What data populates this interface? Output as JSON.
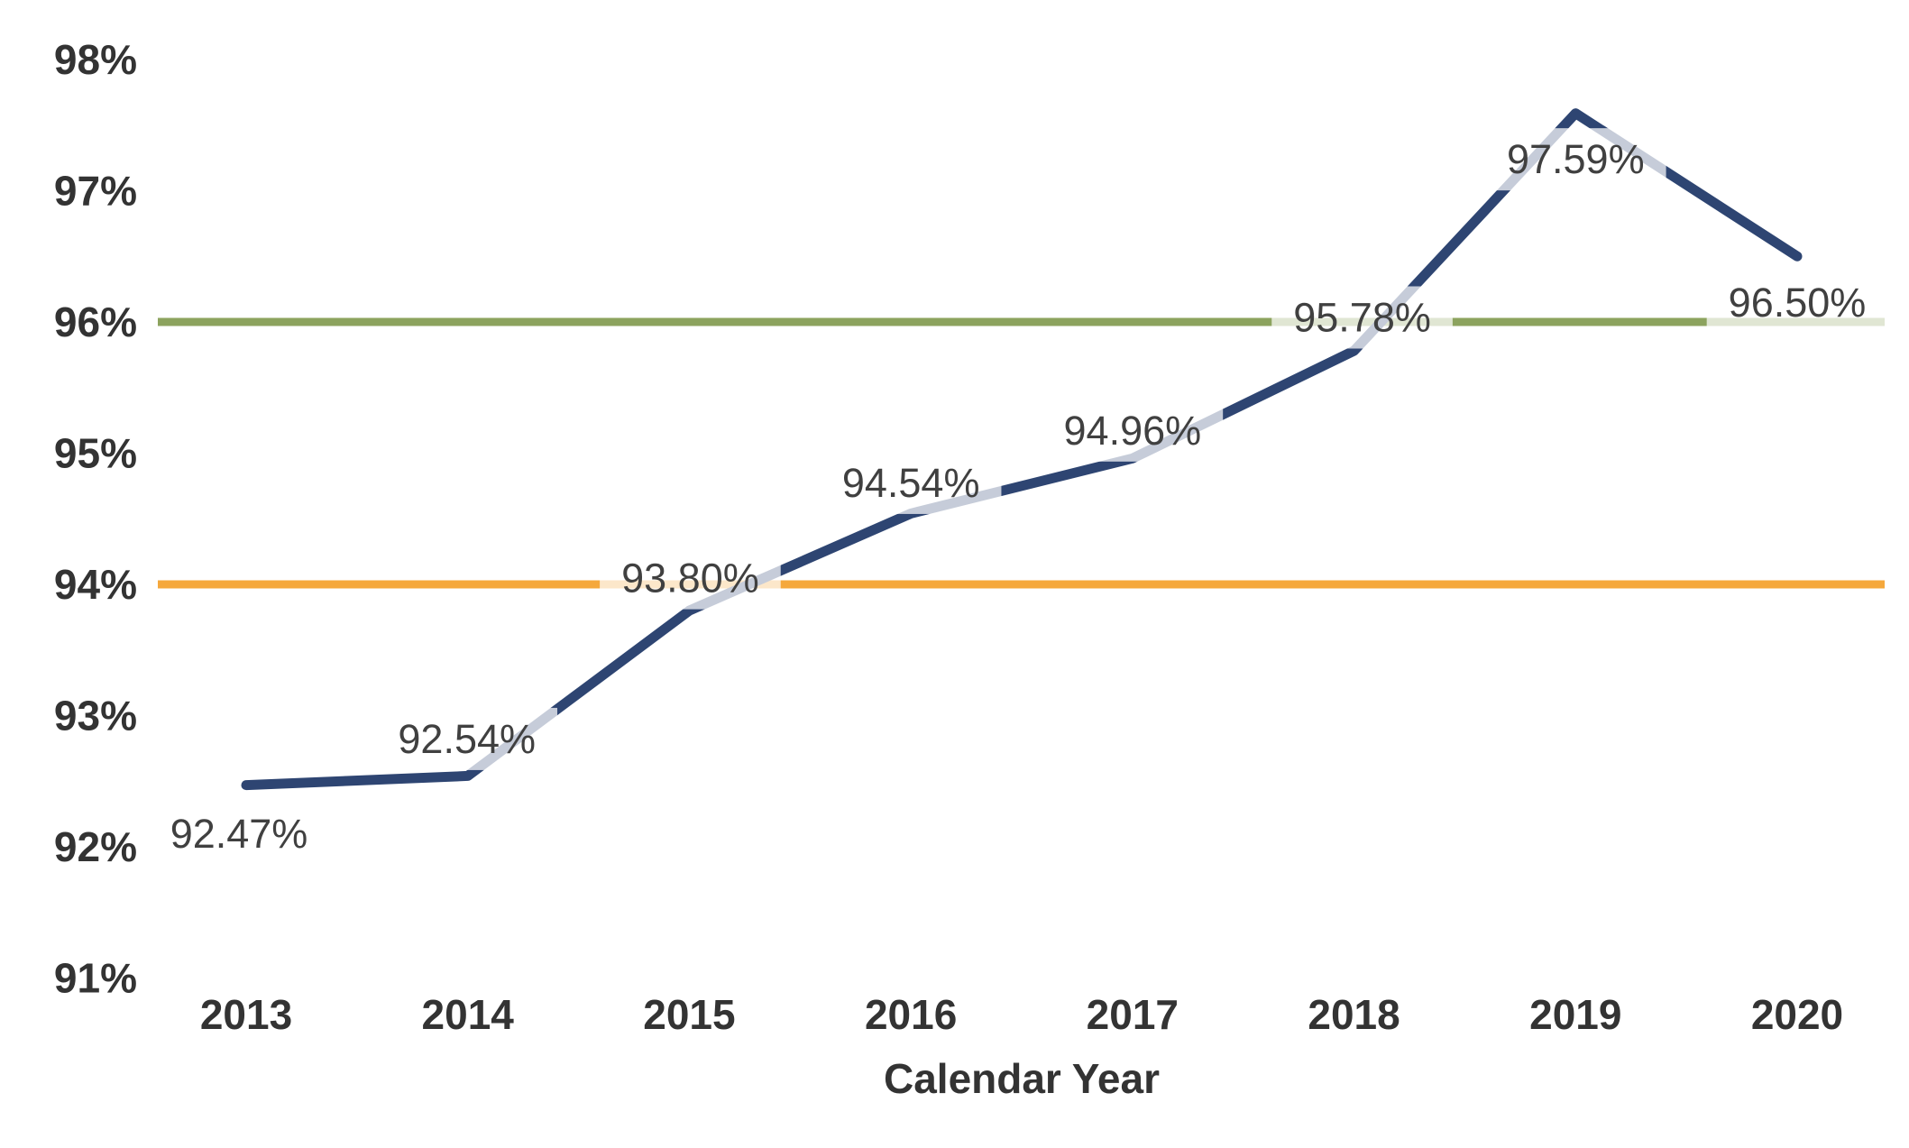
{
  "chart_data": {
    "type": "line",
    "title": "",
    "xlabel": "Calendar Year",
    "ylabel": "",
    "categories": [
      "2013",
      "2014",
      "2015",
      "2016",
      "2017",
      "2018",
      "2019",
      "2020"
    ],
    "series": [
      {
        "name": "annual-percentage",
        "color": "#2E4572",
        "values": [
          92.47,
          92.54,
          93.8,
          94.54,
          94.96,
          95.78,
          97.59,
          96.5
        ],
        "data_labels": [
          "92.47%",
          "92.54%",
          "93.80%",
          "94.54%",
          "94.96%",
          "95.78%",
          "97.59%",
          "96.50%"
        ],
        "label_offsets": [
          {
            "dx": -8,
            "dy": 54
          },
          {
            "dx": -1,
            "dy": -41
          },
          {
            "dx": 1,
            "dy": -36
          },
          {
            "dx": 0,
            "dy": -34
          },
          {
            "dx": 0,
            "dy": -31
          },
          {
            "dx": 9,
            "dy": -37
          },
          {
            "dx": 0,
            "dy": 51
          },
          {
            "dx": 0,
            "dy": 51
          }
        ]
      }
    ],
    "reference_lines": [
      {
        "value": 94,
        "color": "#F5A83C",
        "name": "amber-reference-line"
      },
      {
        "value": 96,
        "color": "#8CA35E",
        "name": "green-reference-line"
      }
    ],
    "y_axis": {
      "min": 91,
      "max": 98,
      "step": 1,
      "tick_labels": [
        "91%",
        "92%",
        "93%",
        "94%",
        "95%",
        "96%",
        "97%",
        "98%"
      ]
    },
    "grid": false,
    "legend": false,
    "label_background_color": "rgba(255,255,255,0.73)"
  }
}
